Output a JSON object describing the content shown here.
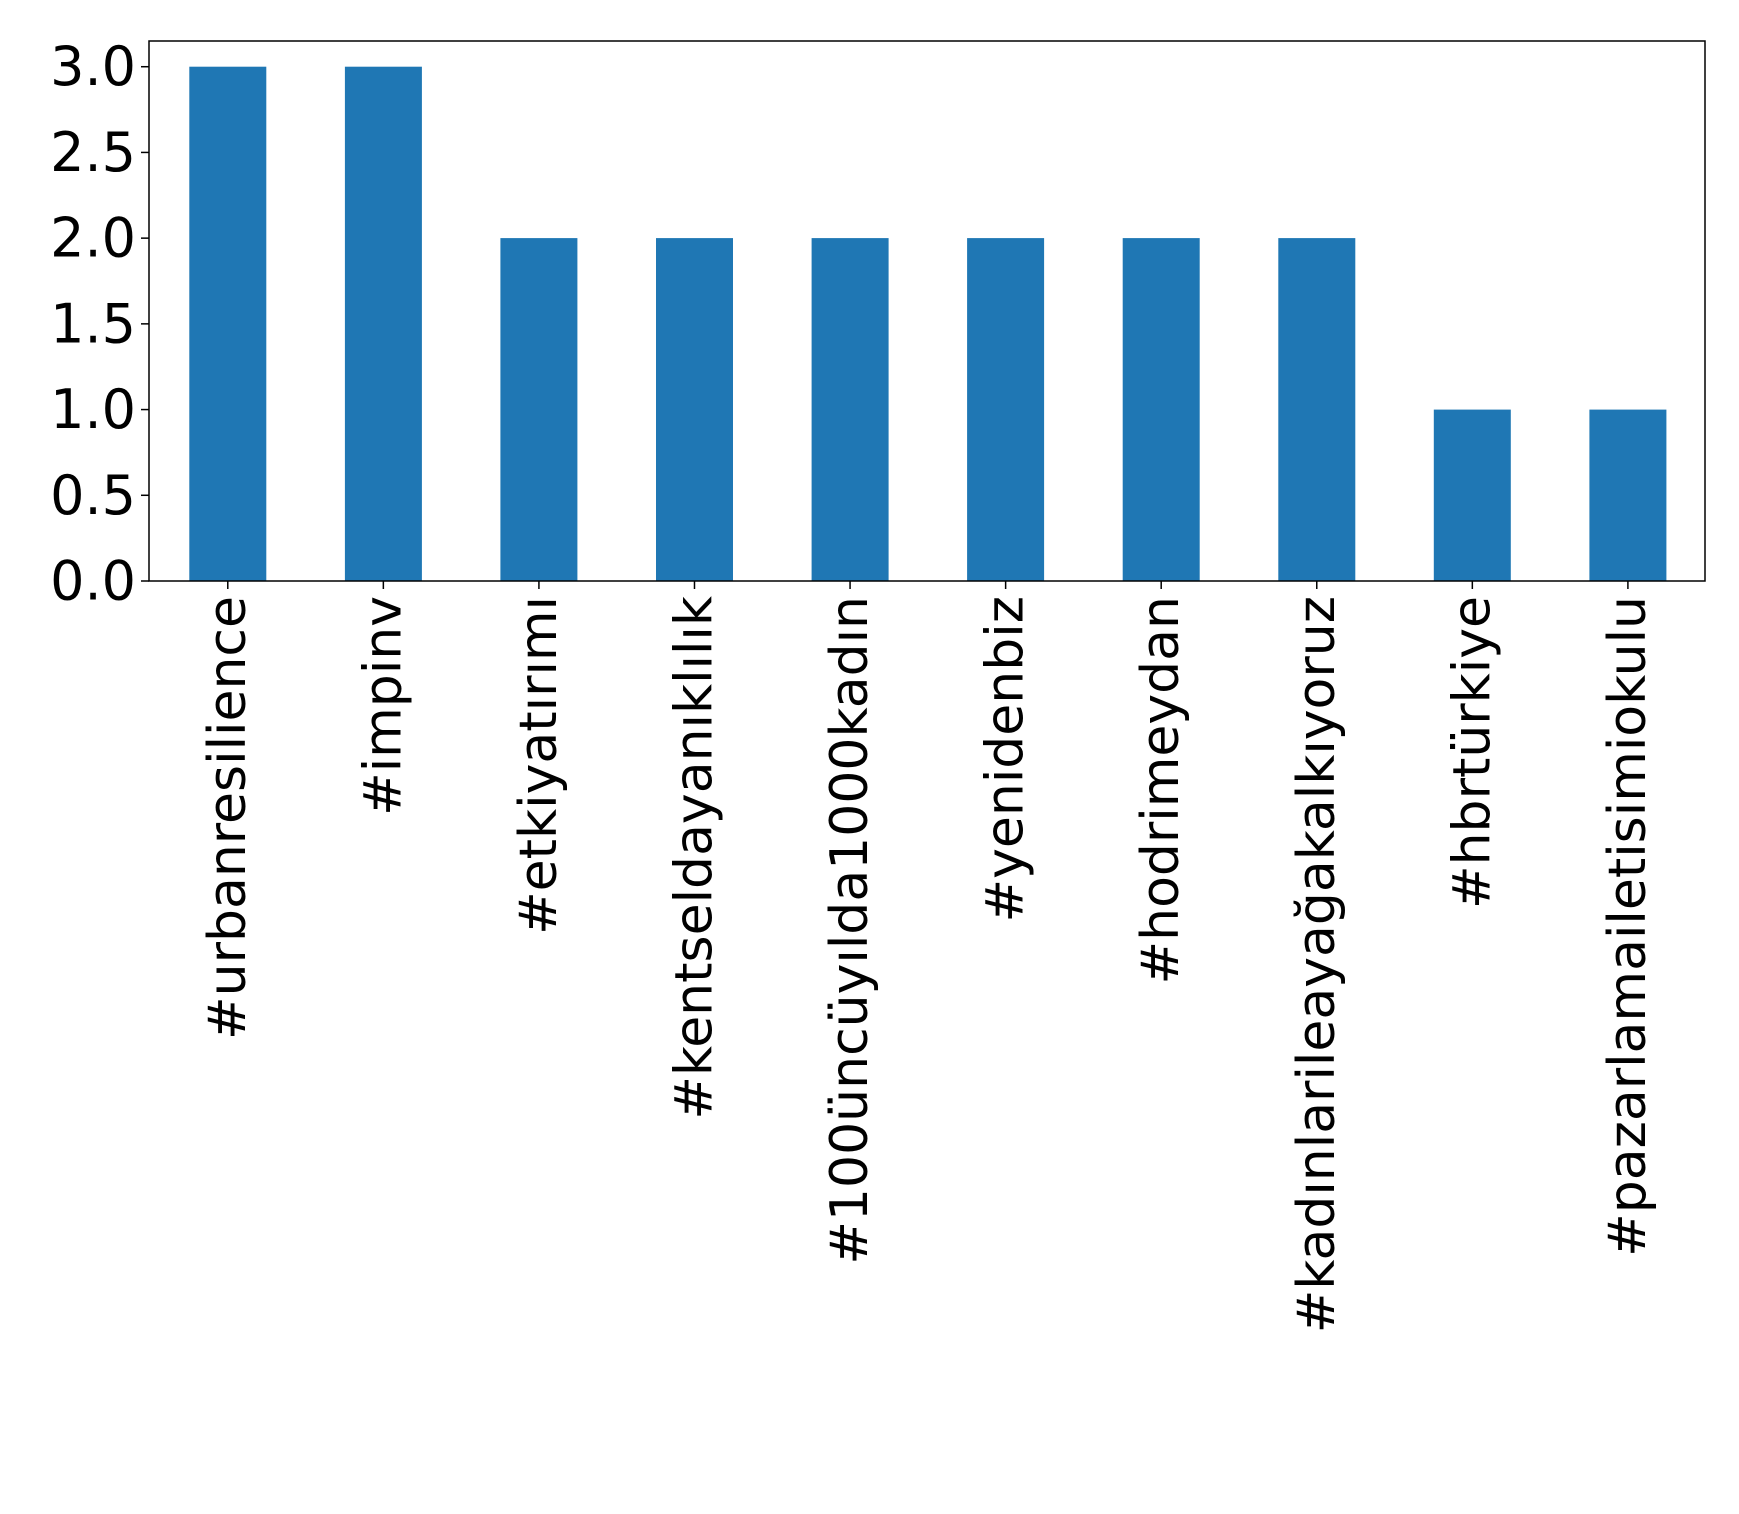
{
  "chart_data": {
    "type": "bar",
    "title": "",
    "xlabel": "",
    "ylabel": "",
    "categories": [
      "#urbanresilience",
      "#impinv",
      "#etkiyatırımı",
      "#kentseldayanıklılık",
      "#100üncüyılda1000kadın",
      "#yenidenbiz",
      "#hodrimeydan",
      "#kadınlarileayağakalkıyoruz",
      "#hbrtürkiye",
      "#pazarlamailetisimiokulu"
    ],
    "values": [
      3,
      3,
      2,
      2,
      2,
      2,
      2,
      2,
      1,
      1
    ],
    "ylim": [
      0,
      3.15
    ],
    "yticks": [
      "0.0",
      "0.5",
      "1.0",
      "1.5",
      "2.0",
      "2.5",
      "3.0"
    ],
    "bar_color": "#1f77b4",
    "grid": false,
    "legend": "none"
  }
}
